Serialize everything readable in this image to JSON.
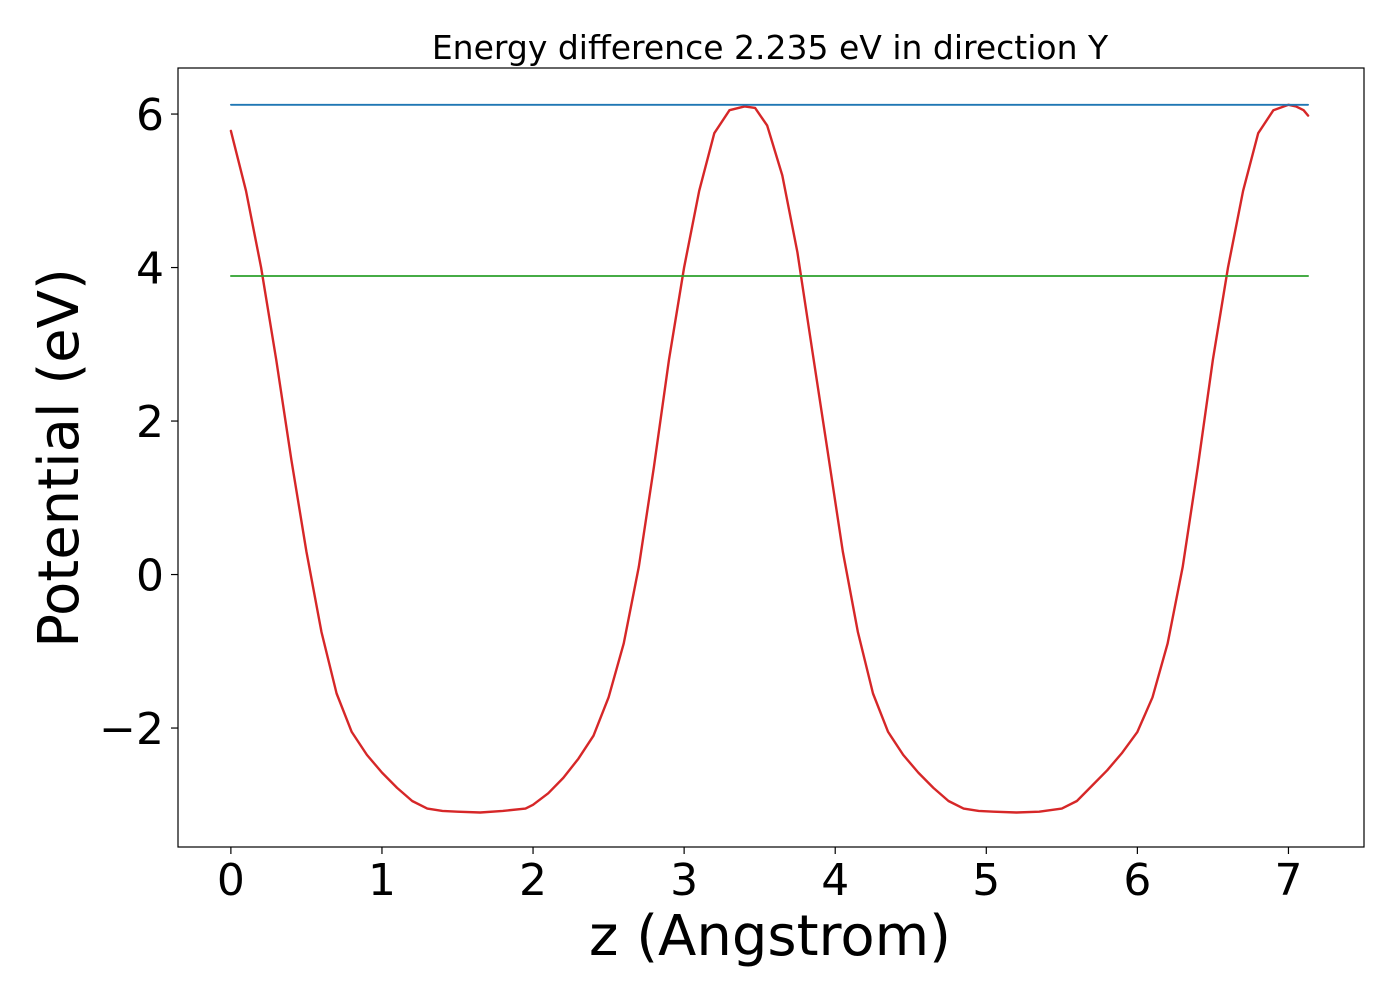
{
  "chart_data": {
    "type": "line",
    "title": "Energy difference 2.235 eV in direction Y",
    "xlabel": "z (Angstrom)",
    "ylabel": "Potential (eV)",
    "xlim": [
      -0.35,
      7.5
    ],
    "ylim": [
      -3.55,
      6.6
    ],
    "xticks": [
      0,
      1,
      2,
      3,
      4,
      5,
      6,
      7
    ],
    "xtick_labels": [
      "0",
      "1",
      "2",
      "3",
      "4",
      "5",
      "6",
      "7"
    ],
    "yticks": [
      -2,
      0,
      2,
      4,
      6
    ],
    "ytick_labels": [
      "−2",
      "0",
      "2",
      "4",
      "6"
    ],
    "grid": false,
    "series": [
      {
        "color": "#d62728",
        "x": [
          0,
          0.1,
          0.2,
          0.3,
          0.4,
          0.5,
          0.6,
          0.7,
          0.8,
          0.9,
          1.0,
          1.1,
          1.2,
          1.3,
          1.4,
          1.5,
          1.65,
          1.8,
          1.95,
          2.0,
          2.1,
          2.2,
          2.3,
          2.4,
          2.5,
          2.6,
          2.7,
          2.8,
          2.9,
          3.0,
          3.1,
          3.2,
          3.3,
          3.4,
          3.47,
          3.55,
          3.65,
          3.75,
          3.85,
          3.95,
          4.05,
          4.15,
          4.25,
          4.35,
          4.45,
          4.55,
          4.65,
          4.75,
          4.85,
          4.95,
          5.05,
          5.2,
          5.35,
          5.5,
          5.6,
          5.7,
          5.8,
          5.9,
          6.0,
          6.1,
          6.2,
          6.3,
          6.4,
          6.5,
          6.6,
          6.7,
          6.8,
          6.9,
          7.0,
          7.05,
          7.1,
          7.13
        ],
        "y": [
          5.78,
          5.0,
          4.0,
          2.8,
          1.5,
          0.3,
          -0.75,
          -1.55,
          -2.05,
          -2.35,
          -2.58,
          -2.78,
          -2.95,
          -3.05,
          -3.08,
          -3.09,
          -3.1,
          -3.08,
          -3.05,
          -3.0,
          -2.85,
          -2.65,
          -2.4,
          -2.1,
          -1.6,
          -0.9,
          0.1,
          1.4,
          2.8,
          4.0,
          5.0,
          5.75,
          6.05,
          6.1,
          6.08,
          5.85,
          5.2,
          4.2,
          2.9,
          1.6,
          0.3,
          -0.75,
          -1.55,
          -2.05,
          -2.35,
          -2.58,
          -2.78,
          -2.95,
          -3.05,
          -3.08,
          -3.09,
          -3.1,
          -3.09,
          -3.05,
          -2.95,
          -2.75,
          -2.55,
          -2.32,
          -2.05,
          -1.6,
          -0.9,
          0.1,
          1.4,
          2.8,
          4.0,
          5.0,
          5.75,
          6.05,
          6.12,
          6.1,
          6.05,
          5.98
        ]
      },
      {
        "color": "#1f77b4",
        "x": [
          0,
          7.13
        ],
        "y": [
          6.12,
          6.12
        ]
      },
      {
        "color": "#2ca02c",
        "x": [
          0,
          7.13
        ],
        "y": [
          3.89,
          3.89
        ]
      }
    ]
  }
}
